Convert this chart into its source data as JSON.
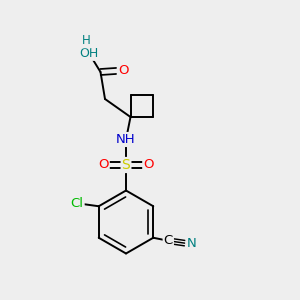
{
  "bg_color": "#eeeeee",
  "bond_color": "#000000",
  "atom_colors": {
    "O": "#ff0000",
    "N": "#0000cc",
    "S": "#cccc00",
    "Cl": "#00bb00",
    "N_cyan": "#008080",
    "H_color": "#008080"
  },
  "font_size": 8.5,
  "bond_width": 1.4,
  "xlim": [
    0,
    10
  ],
  "ylim": [
    0,
    10
  ]
}
